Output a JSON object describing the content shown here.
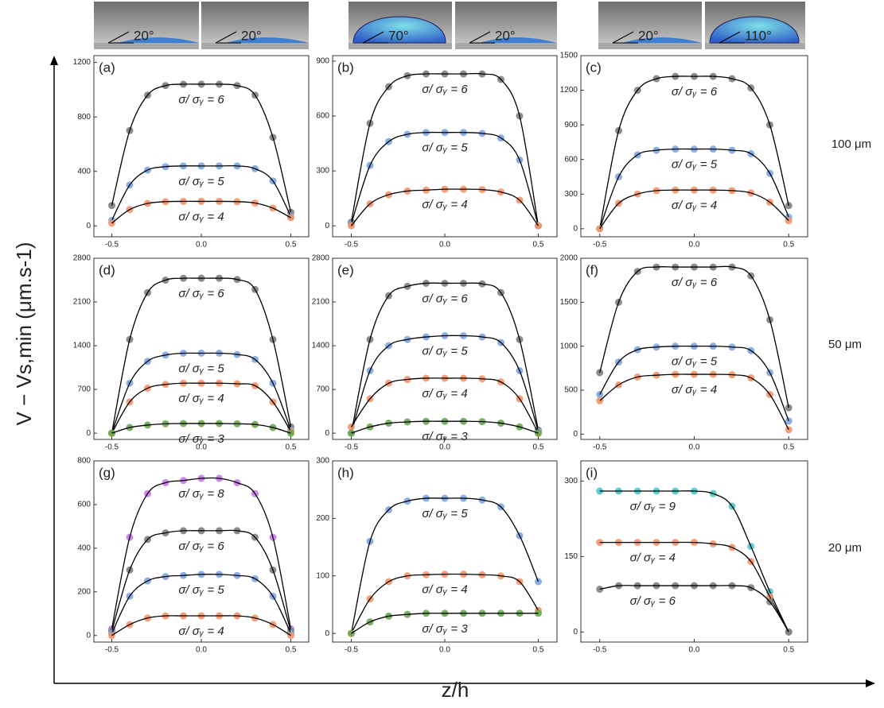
{
  "figure": {
    "y_label": "V − Vs,min (μm.s-1)",
    "x_label": "z/h",
    "row_labels": [
      "100 μm",
      "50 μm",
      "20 μm"
    ],
    "droplets": [
      "20°",
      "20°",
      "70°",
      "20°",
      "20°",
      "110°"
    ]
  },
  "chart_data": [
    {
      "type": "scatter",
      "label": "(a)",
      "x": [
        -0.5,
        -0.4,
        -0.3,
        -0.2,
        -0.1,
        0,
        0.1,
        0.2,
        0.3,
        0.4,
        0.5
      ],
      "xlim": [
        -0.6,
        0.6
      ],
      "xticks": [
        -0.5,
        {
          "value": 0,
          "label": "0.0"
        },
        0.5
      ],
      "ylim": [
        -80,
        1250
      ],
      "yticks": [
        0,
        400,
        800,
        1200
      ],
      "series": [
        {
          "name": "σ/ σᵧ = 6",
          "color": "#7f7f7f",
          "values": [
            150,
            700,
            960,
            1030,
            1040,
            1040,
            1040,
            1030,
            960,
            650,
            100
          ]
        },
        {
          "name": "σ/ σᵧ = 5",
          "color": "#7ea6e0",
          "values": [
            40,
            300,
            410,
            435,
            440,
            440,
            440,
            440,
            420,
            330,
            70
          ]
        },
        {
          "name": "σ/ σᵧ = 4",
          "color": "#f4956a",
          "values": [
            20,
            120,
            165,
            178,
            180,
            180,
            180,
            178,
            168,
            130,
            60
          ]
        }
      ]
    },
    {
      "type": "scatter",
      "label": "(b)",
      "x": [
        -0.5,
        -0.4,
        -0.3,
        -0.2,
        -0.1,
        0,
        0.1,
        0.2,
        0.3,
        0.4,
        0.5
      ],
      "xlim": [
        -0.6,
        0.6
      ],
      "xticks": [
        -0.5,
        {
          "value": 0,
          "label": "0.0"
        },
        0.5
      ],
      "ylim": [
        -60,
        930
      ],
      "yticks": [
        0,
        300,
        600,
        900
      ],
      "series": [
        {
          "name": "σ/ σᵧ = 6",
          "color": "#7f7f7f",
          "values": [
            20,
            560,
            760,
            820,
            830,
            830,
            830,
            830,
            800,
            600,
            0
          ]
        },
        {
          "name": "σ/ σᵧ = 5",
          "color": "#7ea6e0",
          "values": [
            10,
            330,
            460,
            500,
            510,
            510,
            510,
            505,
            480,
            360,
            0
          ]
        },
        {
          "name": "σ/ σᵧ = 4",
          "color": "#f4956a",
          "values": [
            0,
            120,
            170,
            190,
            195,
            200,
            200,
            198,
            185,
            140,
            0
          ]
        }
      ]
    },
    {
      "type": "scatter",
      "label": "(c)",
      "x": [
        -0.5,
        -0.4,
        -0.3,
        -0.2,
        -0.1,
        0,
        0.1,
        0.2,
        0.3,
        0.4,
        0.5
      ],
      "xlim": [
        -0.6,
        0.6
      ],
      "xticks": [
        -0.5,
        {
          "value": 0,
          "label": "0.0"
        },
        0.5
      ],
      "ylim": [
        -70,
        1500
      ],
      "yticks": [
        0,
        300,
        600,
        900,
        1200,
        1500
      ],
      "series": [
        {
          "name": "σ/ σᵧ = 6",
          "color": "#7f7f7f",
          "values": [
            0,
            850,
            1200,
            1300,
            1320,
            1320,
            1320,
            1300,
            1220,
            900,
            200
          ]
        },
        {
          "name": "σ/ σᵧ = 5",
          "color": "#7ea6e0",
          "values": [
            0,
            450,
            640,
            680,
            690,
            690,
            690,
            680,
            650,
            480,
            100
          ]
        },
        {
          "name": "σ/ σᵧ = 4",
          "color": "#f4956a",
          "values": [
            0,
            220,
            300,
            330,
            335,
            335,
            335,
            330,
            310,
            230,
            70
          ]
        }
      ]
    },
    {
      "type": "scatter",
      "label": "(d)",
      "x": [
        -0.5,
        -0.4,
        -0.3,
        -0.2,
        -0.1,
        0,
        0.1,
        0.2,
        0.3,
        0.4,
        0.5
      ],
      "xlim": [
        -0.6,
        0.6
      ],
      "xticks": [
        -0.5,
        {
          "value": 0,
          "label": "0.0"
        },
        0.5
      ],
      "ylim": [
        -100,
        2800
      ],
      "yticks": [
        0,
        700,
        1400,
        2100,
        2800
      ],
      "series": [
        {
          "name": "σ/ σᵧ = 6",
          "color": "#7f7f7f",
          "values": [
            0,
            1500,
            2250,
            2450,
            2480,
            2480,
            2480,
            2460,
            2300,
            1500,
            100
          ]
        },
        {
          "name": "σ/ σᵧ = 5",
          "color": "#7ea6e0",
          "values": [
            0,
            800,
            1150,
            1250,
            1280,
            1280,
            1280,
            1260,
            1180,
            800,
            50
          ]
        },
        {
          "name": "σ/ σᵧ = 4",
          "color": "#f4956a",
          "values": [
            0,
            500,
            720,
            780,
            800,
            800,
            800,
            790,
            760,
            500,
            30
          ]
        },
        {
          "name": "σ/ σᵧ = 3",
          "color": "#6aa84f",
          "values": [
            0,
            90,
            130,
            150,
            155,
            155,
            155,
            150,
            140,
            90,
            0
          ]
        }
      ]
    },
    {
      "type": "scatter",
      "label": "(e)",
      "x": [
        -0.5,
        -0.4,
        -0.3,
        -0.2,
        -0.1,
        0,
        0.1,
        0.2,
        0.3,
        0.4,
        0.5
      ],
      "xlim": [
        -0.6,
        0.6
      ],
      "xticks": [
        -0.5,
        {
          "value": 0,
          "label": "0.0"
        },
        0.5
      ],
      "ylim": [
        -100,
        2800
      ],
      "yticks": [
        0,
        700,
        1400,
        2100,
        2800
      ],
      "series": [
        {
          "name": "σ/ σᵧ = 6",
          "color": "#7f7f7f",
          "values": [
            0,
            1500,
            2200,
            2350,
            2400,
            2400,
            2400,
            2390,
            2250,
            1500,
            50
          ]
        },
        {
          "name": "σ/ σᵧ = 5",
          "color": "#7ea6e0",
          "values": [
            0,
            1000,
            1400,
            1500,
            1540,
            1560,
            1560,
            1540,
            1450,
            1000,
            30
          ]
        },
        {
          "name": "σ/ σᵧ = 4",
          "color": "#f4956a",
          "values": [
            100,
            550,
            800,
            860,
            880,
            880,
            880,
            870,
            820,
            550,
            0
          ]
        },
        {
          "name": "σ/ σᵧ = 3",
          "color": "#6aa84f",
          "values": [
            0,
            100,
            160,
            180,
            190,
            190,
            190,
            185,
            160,
            100,
            0
          ]
        }
      ]
    },
    {
      "type": "scatter",
      "label": "(f)",
      "x": [
        -0.5,
        -0.4,
        -0.3,
        -0.2,
        -0.1,
        0,
        0.1,
        0.2,
        0.3,
        0.4,
        0.5
      ],
      "xlim": [
        -0.6,
        0.6
      ],
      "xticks": [
        -0.5,
        {
          "value": 0,
          "label": "0.0"
        },
        0.5
      ],
      "ylim": [
        -60,
        2000
      ],
      "yticks": [
        0,
        500,
        1000,
        1500,
        2000
      ],
      "series": [
        {
          "name": "σ/ σᵧ = 6",
          "color": "#7f7f7f",
          "values": [
            700,
            1500,
            1850,
            1900,
            1900,
            1900,
            1900,
            1900,
            1800,
            1300,
            300
          ]
        },
        {
          "name": "σ/ σᵧ = 5",
          "color": "#7ea6e0",
          "values": [
            450,
            820,
            960,
            990,
            1000,
            1000,
            1000,
            990,
            950,
            700,
            150
          ]
        },
        {
          "name": "σ/ σᵧ = 4",
          "color": "#f4956a",
          "values": [
            380,
            560,
            650,
            670,
            680,
            680,
            680,
            675,
            640,
            450,
            50
          ]
        }
      ]
    },
    {
      "type": "scatter",
      "label": "(g)",
      "x": [
        -0.5,
        -0.4,
        -0.3,
        -0.2,
        -0.1,
        0,
        0.1,
        0.2,
        0.3,
        0.4,
        0.5
      ],
      "xlim": [
        -0.6,
        0.6
      ],
      "xticks": [
        -0.5,
        {
          "value": 0,
          "label": "0.0"
        },
        0.5
      ],
      "ylim": [
        -30,
        800
      ],
      "yticks": [
        0,
        200,
        400,
        600,
        800
      ],
      "series": [
        {
          "name": "σ/ σᵧ = 8",
          "color": "#c879e8",
          "values": [
            30,
            450,
            650,
            700,
            710,
            720,
            720,
            700,
            650,
            450,
            30
          ]
        },
        {
          "name": "σ/ σᵧ = 6",
          "color": "#7f7f7f",
          "values": [
            20,
            300,
            440,
            470,
            480,
            480,
            480,
            480,
            450,
            300,
            20
          ]
        },
        {
          "name": "σ/ σᵧ = 5",
          "color": "#7ea6e0",
          "values": [
            10,
            180,
            250,
            270,
            275,
            280,
            280,
            275,
            260,
            180,
            10
          ]
        },
        {
          "name": "σ/ σᵧ = 4",
          "color": "#f4956a",
          "values": [
            0,
            50,
            80,
            90,
            90,
            90,
            90,
            90,
            80,
            50,
            0
          ]
        }
      ]
    },
    {
      "type": "scatter",
      "label": "(h)",
      "x": [
        -0.5,
        -0.4,
        -0.3,
        -0.2,
        -0.1,
        0,
        0.1,
        0.2,
        0.3,
        0.4,
        0.5
      ],
      "xlim": [
        -0.6,
        0.6
      ],
      "xticks": [
        -0.5,
        {
          "value": 0,
          "label": "0.0"
        },
        0.5
      ],
      "ylim": [
        -15,
        300
      ],
      "yticks": [
        0,
        100,
        200,
        300
      ],
      "series": [
        {
          "name": "σ/ σᵧ = 5",
          "color": "#7ea6e0",
          "values": [
            0,
            160,
            215,
            230,
            235,
            235,
            235,
            232,
            220,
            170,
            90
          ]
        },
        {
          "name": "σ/ σᵧ = 4",
          "color": "#f4956a",
          "values": [
            0,
            60,
            90,
            100,
            102,
            103,
            103,
            102,
            100,
            90,
            40
          ]
        },
        {
          "name": "σ/ σᵧ = 3",
          "color": "#6aa84f",
          "values": [
            0,
            20,
            30,
            33,
            35,
            35,
            35,
            35,
            35,
            35,
            35
          ]
        }
      ]
    },
    {
      "type": "scatter",
      "label": "(i)",
      "x": [
        -0.5,
        -0.4,
        -0.3,
        -0.2,
        -0.1,
        0,
        0.1,
        0.2,
        0.3,
        0.4,
        0.5
      ],
      "xlim": [
        -0.6,
        0.6
      ],
      "xticks": [
        -0.5,
        {
          "value": 0,
          "label": "0.0"
        },
        0.5
      ],
      "ylim": [
        -20,
        340
      ],
      "yticks": [
        0,
        150,
        300
      ],
      "series": [
        {
          "name": "σ/ σᵧ = 9",
          "color": "#4dc8c8",
          "values": [
            280,
            280,
            280,
            280,
            280,
            280,
            275,
            250,
            170,
            80,
            0
          ]
        },
        {
          "name": "σ/ σᵧ = 4",
          "color": "#f4956a",
          "values": [
            178,
            178,
            178,
            178,
            178,
            178,
            175,
            168,
            140,
            70,
            0
          ]
        },
        {
          "name": "σ/ σᵧ = 6",
          "color": "#7f7f7f",
          "values": [
            85,
            92,
            92,
            92,
            92,
            92,
            92,
            92,
            88,
            60,
            0
          ]
        }
      ]
    }
  ]
}
